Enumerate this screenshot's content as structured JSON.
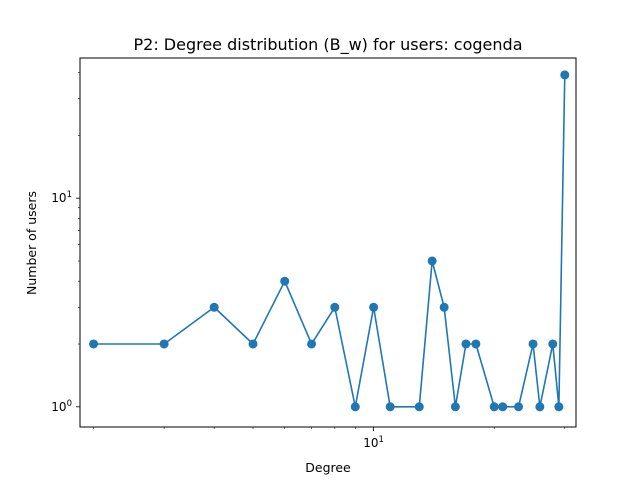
{
  "chart_data": {
    "type": "line",
    "title": "P2: Degree distribution (B_w) for users: cogenda",
    "xlabel": "Degree",
    "ylabel": "Number of users",
    "xscale": "log",
    "yscale": "log",
    "xlim": [
      1.85,
      32
    ],
    "ylim": [
      0.8,
      47
    ],
    "x_ticks": [
      {
        "value": 10,
        "base": "10",
        "exp": "1"
      }
    ],
    "y_ticks": [
      {
        "value": 1,
        "base": "10",
        "exp": "0"
      },
      {
        "value": 10,
        "base": "10",
        "exp": "1"
      }
    ],
    "grid": false,
    "legend": "none",
    "series": [
      {
        "color": "#1f77b4",
        "marker": "circle",
        "points": [
          {
            "x": 2,
            "y": 2
          },
          {
            "x": 3,
            "y": 2
          },
          {
            "x": 4,
            "y": 3
          },
          {
            "x": 5,
            "y": 2
          },
          {
            "x": 6,
            "y": 4
          },
          {
            "x": 7,
            "y": 2
          },
          {
            "x": 8,
            "y": 3
          },
          {
            "x": 9,
            "y": 1
          },
          {
            "x": 10,
            "y": 3
          },
          {
            "x": 11,
            "y": 1
          },
          {
            "x": 13,
            "y": 1
          },
          {
            "x": 14,
            "y": 5
          },
          {
            "x": 15,
            "y": 3
          },
          {
            "x": 16,
            "y": 1
          },
          {
            "x": 17,
            "y": 2
          },
          {
            "x": 18,
            "y": 2
          },
          {
            "x": 20,
            "y": 1
          },
          {
            "x": 21,
            "y": 1
          },
          {
            "x": 23,
            "y": 1
          },
          {
            "x": 25,
            "y": 2
          },
          {
            "x": 26,
            "y": 1
          },
          {
            "x": 28,
            "y": 2
          },
          {
            "x": 29,
            "y": 1
          },
          {
            "x": 30,
            "y": 39
          }
        ]
      }
    ]
  }
}
